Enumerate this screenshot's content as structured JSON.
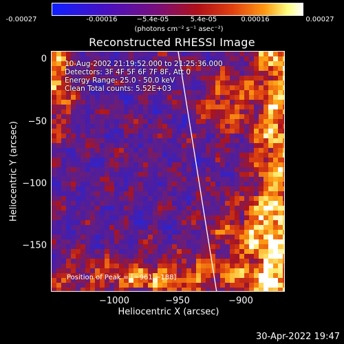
{
  "colorbar": {
    "tick_labels": [
      "-0.00027",
      "-0.00016",
      "−5.4e-05",
      "5.4e-05",
      "0.00016",
      "0.00027"
    ],
    "units_label": "(photons cm⁻² s⁻¹ asec⁻²)",
    "colors": [
      "#1020ff",
      "#7a0f7a",
      "#b01018",
      "#ff9a12",
      "#ffffff"
    ]
  },
  "chart_data": {
    "type": "heatmap",
    "title": "Reconstructed RHESSI Image",
    "xlabel": "Heliocentric X (arcsec)",
    "ylabel": "Heliocentric Y (arcsec)",
    "xlim": [
      -1050,
      -880
    ],
    "ylim": [
      -190,
      5
    ],
    "x_ticks": [
      "−1000",
      "−950",
      "−900"
    ],
    "y_ticks": [
      "0",
      "−50",
      "−100",
      "−150"
    ],
    "colorbar_range": [
      -0.00027,
      0.00027
    ],
    "annotations": [
      "10-Aug-2002 21:19:52.000 to 21:25:36.000",
      "Detectors: 3F 4F 5F 6F 7F 8F, Att 0",
      "Energy Range: 25.0 - 50.0 keV",
      "Clean    Total counts: 5.52E+03",
      "Position of Peak = [−961,−188]"
    ],
    "limb_line": [
      [
        -958,
        5
      ],
      [
        -930,
        -190
      ]
    ],
    "peak_position": [
      -961,
      -188
    ]
  },
  "timestamp": "30-Apr-2022 19:47"
}
